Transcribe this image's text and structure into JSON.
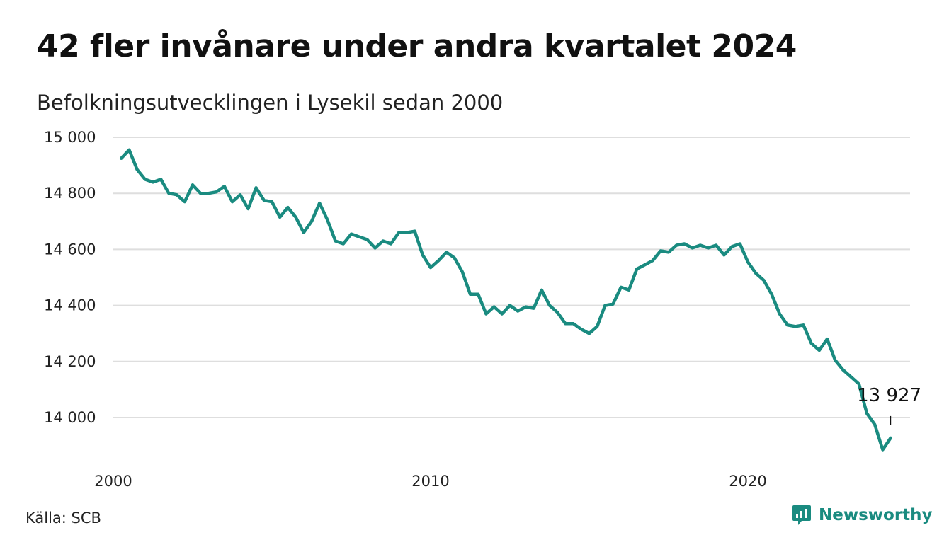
{
  "title": "42 fler invånare under andra kvartalet 2024",
  "subtitle": "Befolkningsutvecklingen i Lysekil sedan 2000",
  "source": "Källa: SCB",
  "brand": {
    "name": "Newsworthy",
    "icon": "newsworthy-logo-icon",
    "color": "#1a8b80"
  },
  "colors": {
    "line": "#1a8b80",
    "grid": "#dedede"
  },
  "chart_data": {
    "type": "line",
    "title": "42 fler invånare under andra kvartalet 2024",
    "subtitle": "Befolkningsutvecklingen i Lysekil sedan 2000",
    "ylim": [
      13850,
      15050
    ],
    "xlim": [
      2000.0,
      2025.0
    ],
    "grid": true,
    "y_ticks": [
      {
        "value": 15000,
        "label": "15 000"
      },
      {
        "value": 14800,
        "label": "14 800"
      },
      {
        "value": 14600,
        "label": "14 600"
      },
      {
        "value": 14400,
        "label": "14 400"
      },
      {
        "value": 14200,
        "label": "14 200"
      },
      {
        "value": 14000,
        "label": "14 000"
      }
    ],
    "x_ticks": [
      {
        "value": 2000,
        "label": "2000"
      },
      {
        "value": 2010,
        "label": "2010"
      },
      {
        "value": 2020,
        "label": "2020"
      }
    ],
    "last_value_label": "13 927",
    "x": [
      2000.25,
      2000.5,
      2000.75,
      2001,
      2001.25,
      2001.5,
      2001.75,
      2002,
      2002.25,
      2002.5,
      2002.75,
      2003,
      2003.25,
      2003.5,
      2003.75,
      2004,
      2004.25,
      2004.5,
      2004.75,
      2005,
      2005.25,
      2005.5,
      2005.75,
      2006,
      2006.25,
      2006.5,
      2006.75,
      2007,
      2007.25,
      2007.5,
      2007.75,
      2008,
      2008.25,
      2008.5,
      2008.75,
      2009,
      2009.25,
      2009.5,
      2009.75,
      2010,
      2010.25,
      2010.5,
      2010.75,
      2011,
      2011.25,
      2011.5,
      2011.75,
      2012,
      2012.25,
      2012.5,
      2012.75,
      2013,
      2013.25,
      2013.5,
      2013.75,
      2014,
      2014.25,
      2014.5,
      2014.75,
      2015,
      2015.25,
      2015.5,
      2015.75,
      2016,
      2016.25,
      2016.5,
      2016.75,
      2017,
      2017.25,
      2017.5,
      2017.75,
      2018,
      2018.25,
      2018.5,
      2018.75,
      2019,
      2019.25,
      2019.5,
      2019.75,
      2020,
      2020.25,
      2020.5,
      2020.75,
      2021,
      2021.25,
      2021.5,
      2021.75,
      2022,
      2022.25,
      2022.5,
      2022.75,
      2023,
      2023.25,
      2023.5,
      2023.75,
      2024,
      2024.25,
      2024.5
    ],
    "series": [
      {
        "values": [
          14925,
          14955,
          14885,
          14850,
          14840,
          14850,
          14800,
          14795,
          14770,
          14830,
          14800,
          14800,
          14805,
          14825,
          14770,
          14795,
          14745,
          14820,
          14775,
          14770,
          14715,
          14750,
          14715,
          14660,
          14700,
          14765,
          14705,
          14630,
          14620,
          14655,
          14645,
          14635,
          14605,
          14630,
          14620,
          14660,
          14660,
          14665,
          14580,
          14535,
          14560,
          14590,
          14570,
          14520,
          14440,
          14440,
          14370,
          14395,
          14370,
          14400,
          14380,
          14395,
          14390,
          14455,
          14400,
          14375,
          14335,
          14335,
          14315,
          14300,
          14325,
          14400,
          14405,
          14465,
          14455,
          14530,
          14545,
          14560,
          14595,
          14590,
          14615,
          14620,
          14605,
          14615,
          14605,
          14615,
          14580,
          14610,
          14620,
          14555,
          14515,
          14490,
          14440,
          14370,
          14330,
          14325,
          14330,
          14265,
          14240,
          14280,
          14205,
          14170,
          14145,
          14120,
          14015,
          13975,
          13885,
          13927
        ]
      }
    ]
  }
}
